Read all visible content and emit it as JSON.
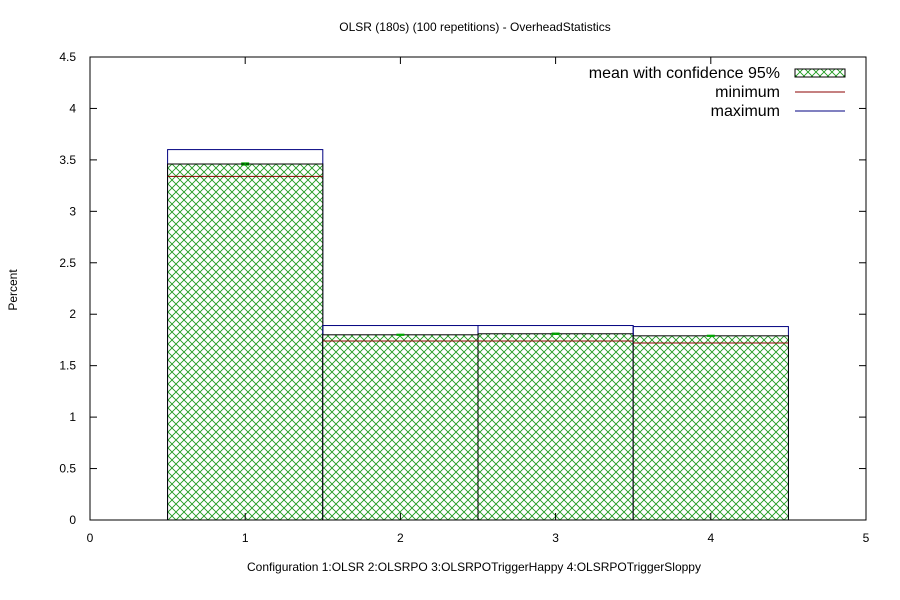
{
  "chart_data": {
    "type": "bar",
    "title": "OLSR (180s) (100 repetitions) - OverheadStatistics",
    "xlabel": "Configuration 1:OLSR  2:OLSRPO  3:OLSRPOTriggerHappy  4:OLSRPOTriggerSloppy",
    "ylabel": "Percent",
    "xlim": [
      0,
      5
    ],
    "ylim": [
      0,
      4.5
    ],
    "xticks": [
      "0",
      "1",
      "2",
      "3",
      "4",
      "5"
    ],
    "yticks": [
      "0",
      "0.5",
      "1",
      "1.5",
      "2",
      "2.5",
      "3",
      "3.5",
      "4",
      "4.5"
    ],
    "grid": false,
    "legend_position": "top-right",
    "x": [
      1,
      2,
      3,
      4
    ],
    "series": [
      {
        "name": "mean with confidence 95%",
        "values": [
          3.46,
          1.8,
          1.81,
          1.79
        ],
        "ci": [
          0.01,
          0.005,
          0.006,
          0.005
        ],
        "color": "#00aa00",
        "fill": "crosshatch"
      },
      {
        "name": "minimum",
        "values": [
          3.34,
          1.74,
          1.74,
          1.72
        ],
        "color": "#8b0000"
      },
      {
        "name": "maximum",
        "values": [
          3.6,
          1.89,
          1.89,
          1.88
        ],
        "color": "#000080"
      }
    ]
  }
}
